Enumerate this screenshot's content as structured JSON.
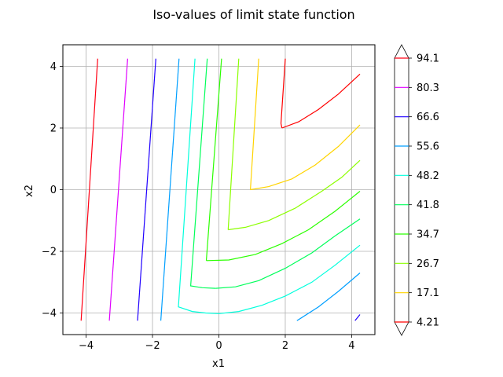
{
  "chart_data": {
    "type": "contour",
    "title": "Iso-values of limit state function",
    "xlabel": "x1",
    "ylabel": "x2",
    "xlim": [
      -4.7,
      4.7
    ],
    "ylim": [
      -4.7,
      4.7
    ],
    "xticks": [
      -4,
      -2,
      0,
      2,
      4
    ],
    "yticks": [
      -4,
      -2,
      0,
      2,
      4
    ],
    "grid": true,
    "colorbar": {
      "levels": [
        4.21,
        17.1,
        26.7,
        34.7,
        41.8,
        48.2,
        55.6,
        66.6,
        80.3,
        94.1
      ],
      "labels": [
        "4.21",
        "17.1",
        "26.7",
        "34.7",
        "41.8",
        "48.2",
        "55.6",
        "66.6",
        "80.3",
        "94.1"
      ],
      "extend": "both"
    },
    "colors": [
      "#ff0000",
      "#ffd400",
      "#8cff00",
      "#2bff00",
      "#00ff5a",
      "#00ffdd",
      "#009fff",
      "#2000ff",
      "#e000ff",
      "#ff0014"
    ],
    "contours": [
      {
        "level": "94.1",
        "color": "#ff0014",
        "paths": [
          [
            [
              -4.15,
              -4.25
            ],
            [
              -3.65,
              4.25
            ]
          ]
        ]
      },
      {
        "level": "80.3",
        "color": "#e000ff",
        "paths": [
          [
            [
              -3.3,
              -4.25
            ],
            [
              -2.75,
              4.25
            ]
          ]
        ]
      },
      {
        "level": "66.6",
        "color": "#2000ff",
        "paths": [
          [
            [
              -2.45,
              -4.25
            ],
            [
              -1.9,
              4.25
            ]
          ],
          [
            [
              4.1,
              -4.25
            ],
            [
              4.25,
              -4.05
            ]
          ]
        ]
      },
      {
        "level": "55.6",
        "color": "#009fff",
        "paths": [
          [
            [
              -1.75,
              -4.25
            ],
            [
              -1.2,
              4.25
            ]
          ],
          [
            [
              2.35,
              -4.25
            ],
            [
              3.0,
              -3.8
            ],
            [
              3.6,
              -3.3
            ],
            [
              4.25,
              -2.7
            ]
          ]
        ]
      },
      {
        "level": "48.2",
        "color": "#00ffdd",
        "paths": [
          [
            [
              0.0,
              -4.02
            ],
            [
              -0.4,
              -4.0
            ],
            [
              -0.8,
              -3.95
            ],
            [
              -1.22,
              -3.8
            ],
            [
              -0.72,
              4.25
            ]
          ],
          [
            [
              0.0,
              -4.02
            ],
            [
              0.6,
              -3.95
            ],
            [
              1.3,
              -3.75
            ],
            [
              2.0,
              -3.45
            ],
            [
              2.8,
              -3.0
            ],
            [
              3.5,
              -2.45
            ],
            [
              4.25,
              -1.8
            ]
          ]
        ]
      },
      {
        "level": "41.8",
        "color": "#00ff5a",
        "paths": [
          [
            [
              -0.1,
              -3.2
            ],
            [
              -0.5,
              -3.18
            ],
            [
              -0.85,
              -3.12
            ],
            [
              -0.35,
              4.25
            ]
          ],
          [
            [
              -0.1,
              -3.2
            ],
            [
              0.5,
              -3.15
            ],
            [
              1.2,
              -2.95
            ],
            [
              2.0,
              -2.55
            ],
            [
              2.8,
              -2.05
            ],
            [
              3.5,
              -1.5
            ],
            [
              4.25,
              -0.95
            ]
          ]
        ]
      },
      {
        "level": "34.7",
        "color": "#2bff00",
        "paths": [
          [
            [
              -0.38,
              -2.3
            ],
            [
              0.08,
              4.25
            ]
          ],
          [
            [
              -0.38,
              -2.3
            ],
            [
              0.3,
              -2.28
            ],
            [
              1.1,
              -2.1
            ],
            [
              1.9,
              -1.75
            ],
            [
              2.7,
              -1.3
            ],
            [
              3.5,
              -0.7
            ],
            [
              4.25,
              -0.05
            ]
          ]
        ]
      },
      {
        "level": "26.7",
        "color": "#8cff00",
        "paths": [
          [
            [
              0.28,
              -1.3
            ],
            [
              0.6,
              4.25
            ]
          ],
          [
            [
              0.28,
              -1.3
            ],
            [
              0.8,
              -1.22
            ],
            [
              1.5,
              -1.0
            ],
            [
              2.3,
              -0.6
            ],
            [
              3.1,
              -0.05
            ],
            [
              3.7,
              0.4
            ],
            [
              4.25,
              0.95
            ]
          ]
        ]
      },
      {
        "level": "17.1",
        "color": "#ffd400",
        "paths": [
          [
            [
              0.95,
              0.0
            ],
            [
              1.2,
              4.25
            ]
          ],
          [
            [
              0.95,
              0.0
            ],
            [
              1.5,
              0.1
            ],
            [
              2.2,
              0.35
            ],
            [
              2.9,
              0.8
            ],
            [
              3.6,
              1.4
            ],
            [
              4.25,
              2.1
            ]
          ]
        ]
      },
      {
        "level": "4.21",
        "color": "#ff0000",
        "paths": [
          [
            [
              1.9,
              2.0
            ],
            [
              1.87,
              2.15
            ],
            [
              2.0,
              4.25
            ]
          ],
          [
            [
              1.9,
              2.0
            ],
            [
              2.4,
              2.2
            ],
            [
              3.0,
              2.6
            ],
            [
              3.6,
              3.1
            ],
            [
              4.25,
              3.75
            ]
          ]
        ]
      }
    ]
  }
}
